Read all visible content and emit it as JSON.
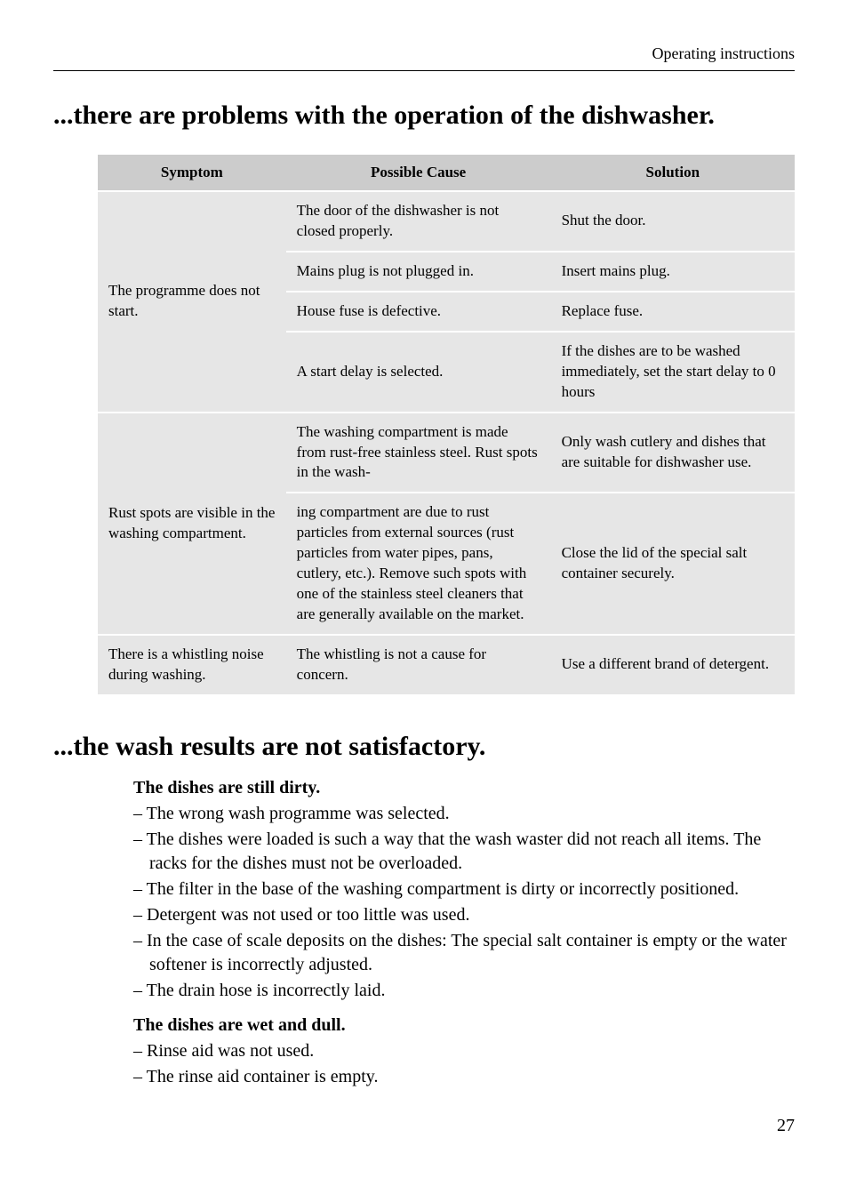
{
  "header": {
    "label": "Operating instructions"
  },
  "section1": {
    "title": "...there are problems with the operation of the dishwasher.",
    "table": {
      "headers": {
        "symptom": "Symptom",
        "cause": "Possible Cause",
        "solution": "Solution"
      },
      "rows": [
        {
          "symptom": "The programme does not start.",
          "symptom_rowspan": 4,
          "cause": "The door of the dishwasher is not closed properly.",
          "solution": "Shut the door."
        },
        {
          "cause": "Mains plug is not plugged in.",
          "solution": "Insert mains plug."
        },
        {
          "cause": "House fuse is defective.",
          "solution": "Replace fuse."
        },
        {
          "cause": "A start delay is selected.",
          "solution": "If the dishes are to be washed immediately, set the start delay to 0 hours"
        },
        {
          "symptom": "Rust spots are visible in the washing compartment.",
          "symptom_rowspan": 2,
          "cause": "The washing compartment is made from rust-free stainless steel. Rust spots in the wash-",
          "solution": "Only wash cutlery and dishes that are suitable for dishwasher use."
        },
        {
          "cause": "ing compartment are due to rust particles from external sources (rust particles from water pipes, pans, cutlery, etc.). Remove such spots with one of the stainless steel cleaners that are generally available on the market.",
          "solution": "Close the lid of the special salt container securely."
        },
        {
          "symptom": "There is a whistling noise during washing.",
          "symptom_rowspan": 1,
          "cause": "The whistling is not a cause for concern.",
          "solution": "Use a different brand of detergent."
        }
      ]
    }
  },
  "section2": {
    "title": "...the wash results are not satisfactory.",
    "block1": {
      "heading": "The dishes are still dirty.",
      "items": [
        "The wrong wash programme was selected.",
        "The dishes were loaded is such a way that the wash waster did not reach all items. The racks for the dishes must not be overloaded.",
        "The filter in the base of the washing compartment is dirty or incorrectly positioned.",
        "Detergent was not used or too little was used.",
        "In the case of scale deposits on the dishes: The special salt container is empty or the water softener is incorrectly adjusted.",
        "The drain hose is incorrectly laid."
      ]
    },
    "block2": {
      "heading": "The dishes are wet and dull.",
      "items": [
        "Rinse aid was not used.",
        "The rinse aid container is empty."
      ]
    }
  },
  "page_number": "27"
}
